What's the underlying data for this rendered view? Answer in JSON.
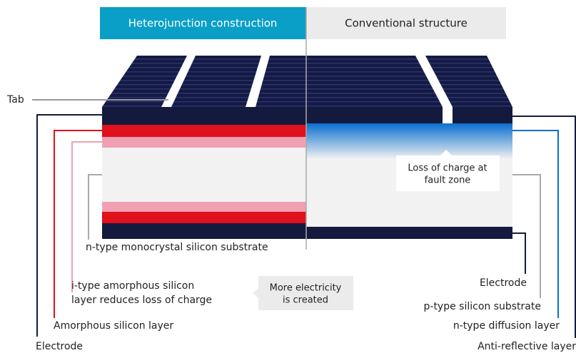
{
  "tabs": {
    "left": "Heterojunction construction",
    "right": "Conventional structure"
  },
  "labels_left": {
    "tab": "Tab",
    "n_type_substrate": "n-type monocrystal silicon substrate",
    "i_type": [
      "i-type amorphous silicon",
      "layer reduces loss of charge"
    ],
    "amorphous": "Amorphous silicon layer",
    "electrode": "Electrode"
  },
  "labels_right": {
    "electrode": "Electrode",
    "p_type": "p-type silicon substrate",
    "n_type_diffusion": "n-type diffusion layer",
    "anti_reflective": "Anti-reflective layer"
  },
  "callouts": {
    "more": [
      "More electricity",
      "is created"
    ],
    "loss": [
      "Loss of charge at",
      "fault zone"
    ]
  }
}
